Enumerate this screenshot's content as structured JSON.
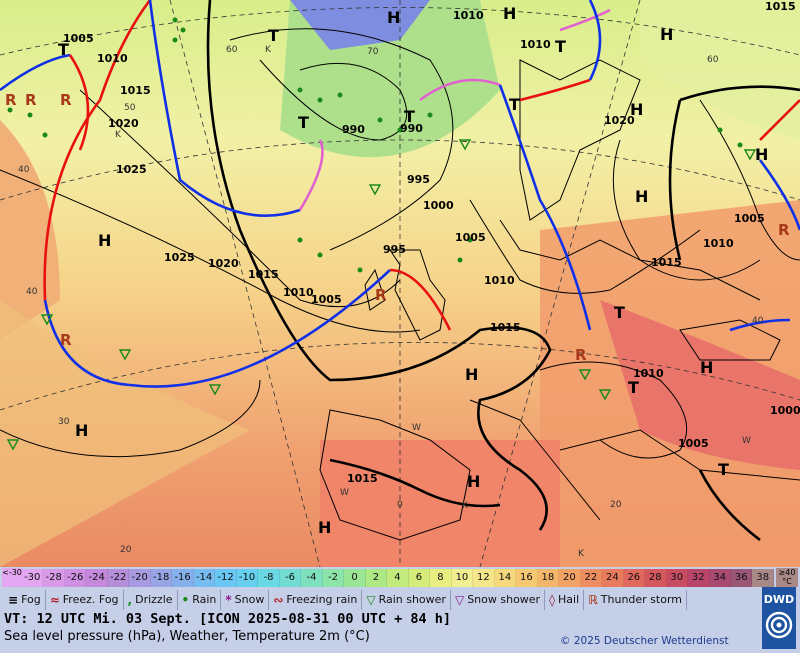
{
  "map": {
    "pressure_labels": [
      "1005",
      "1010",
      "1010",
      "1010",
      "1015",
      "1020",
      "1025",
      "1025",
      "1020",
      "1015",
      "1010",
      "1005",
      "990",
      "990",
      "995",
      "1000",
      "1005",
      "995",
      "1010",
      "1015",
      "1015",
      "1020",
      "1010",
      "1005",
      "1000",
      "1005",
      "1015",
      "1010",
      "1015"
    ],
    "pressure_centers": [
      "H",
      "H",
      "T",
      "T",
      "T",
      "T",
      "H",
      "H",
      "T",
      "H",
      "T",
      "H",
      "H",
      "H",
      "H",
      "T",
      "T",
      "H",
      "H",
      "T",
      "H"
    ],
    "grid_labels": [
      "60",
      "50",
      "40",
      "70",
      "30",
      "20",
      "60",
      "40",
      "40",
      "0",
      "20",
      "W",
      "W",
      "W",
      "K",
      "K",
      "K",
      "K"
    ],
    "fronts": [
      "cold",
      "warm",
      "occluded"
    ]
  },
  "legend": {
    "temperature_scale": [
      "-30",
      "-28",
      "-26",
      "-24",
      "-22",
      "-20",
      "-18",
      "-16",
      "-14",
      "-12",
      "-10",
      "-8",
      "-6",
      "-4",
      "-2",
      "0",
      "2",
      "4",
      "6",
      "8",
      "10",
      "12",
      "14",
      "16",
      "18",
      "20",
      "22",
      "24",
      "26",
      "28",
      "30",
      "32",
      "34",
      "36",
      "38"
    ],
    "scale_lower": "<-30",
    "scale_upper": "≥40 °C",
    "weather_items": [
      {
        "symbol": "≡",
        "label": "Fog"
      },
      {
        "symbol": "≈",
        "label": "Freez. Fog"
      },
      {
        "symbol": ",",
        "label": "Drizzle"
      },
      {
        "symbol": "•",
        "label": "Rain"
      },
      {
        "symbol": "*",
        "label": "Snow"
      },
      {
        "symbol": "∾",
        "label": "Freezing rain"
      },
      {
        "symbol": "▽",
        "label": "Rain shower"
      },
      {
        "symbol": "▽",
        "label": "Snow shower"
      },
      {
        "symbol": "◊",
        "label": "Hail"
      },
      {
        "symbol": "ℝ",
        "label": "Thunder storm"
      }
    ],
    "valid_time": "VT: 12 UTC Mi.  03 Sept. [ICON 2025-08-31  00 UTC + 84 h]",
    "description": "Sea level pressure (hPa), Weather, Temperature 2m (°C)",
    "copyright": "© 2025 Deutscher Wetterdienst",
    "logo_text": "DWD",
    "colors": {
      "cold_front": "#1030e8",
      "warm_front": "#e81010",
      "occlusion": "#e060d0",
      "isobar": "#000000"
    }
  }
}
